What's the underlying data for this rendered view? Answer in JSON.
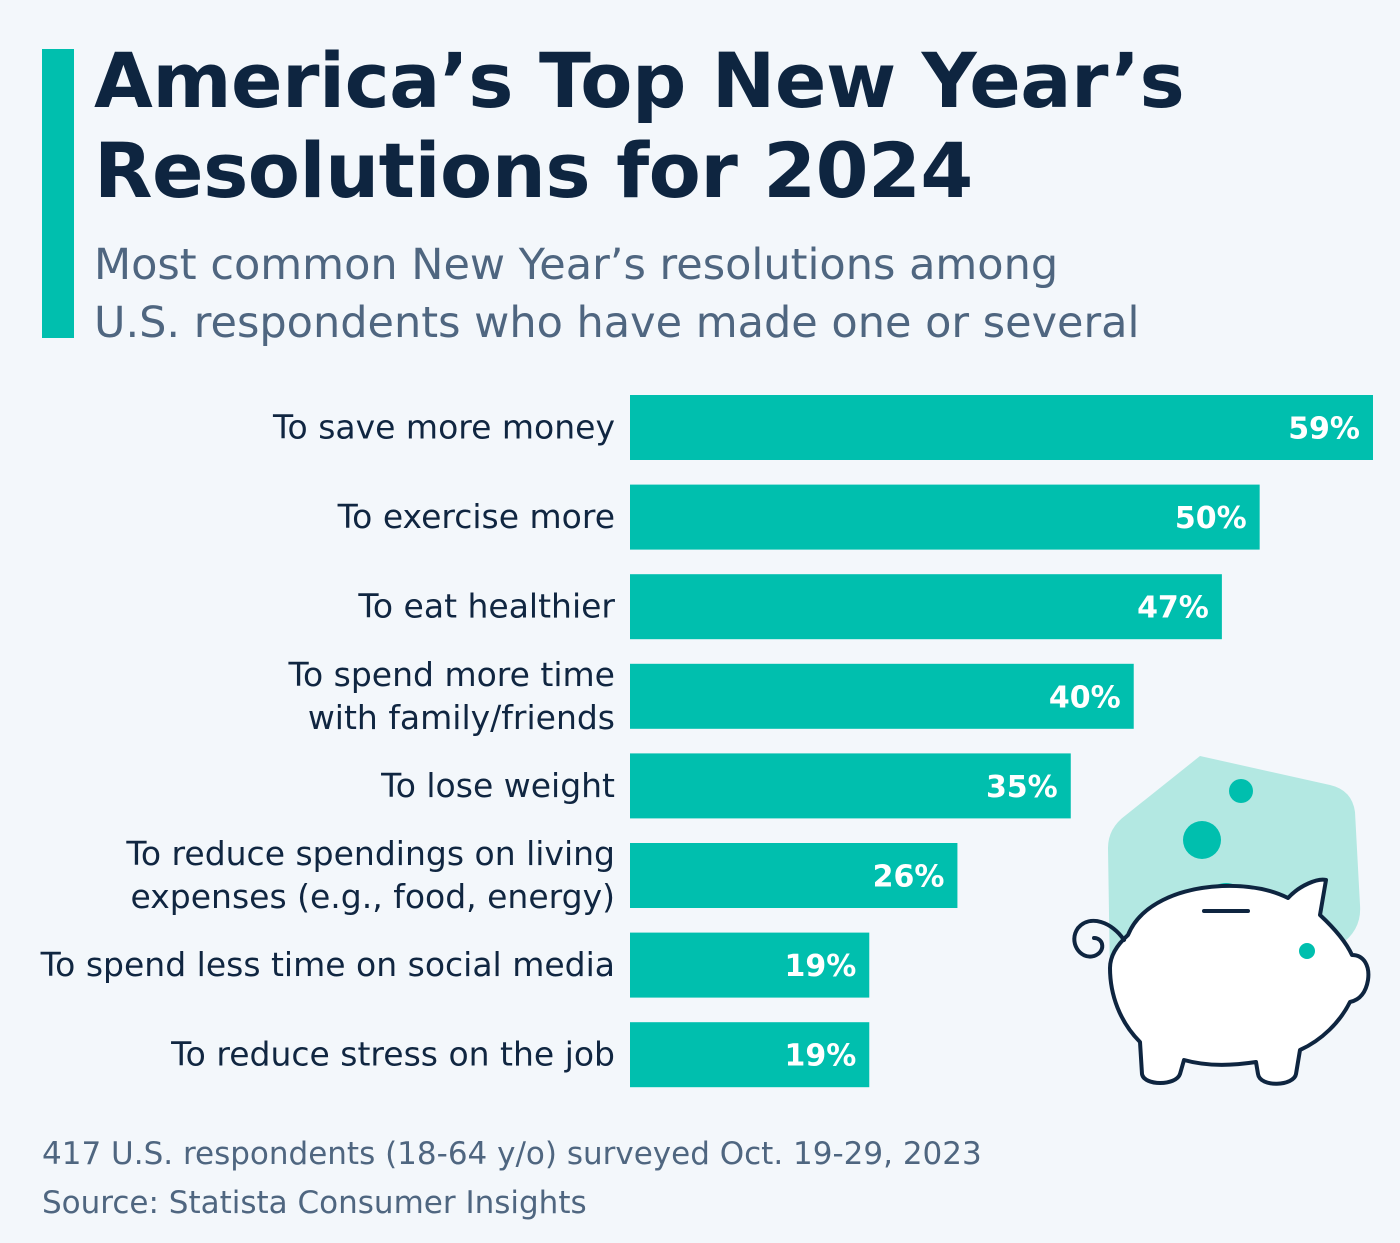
{
  "colors": {
    "accent": "#00bfae",
    "title": "#0e2540",
    "subtitle": "#4f6680",
    "background": "#f3f7fb",
    "icon_bg": "#b3e8e2",
    "icon_stroke": "#0e2540"
  },
  "header": {
    "title_line1": "America’s Top New Year’s",
    "title_line2": "Resolutions for 2024",
    "subtitle_line1": "Most common New Year’s resolutions among",
    "subtitle_line2": "U.S. respondents who have made one or several"
  },
  "chart_data": {
    "type": "bar",
    "orientation": "horizontal",
    "title": "America’s Top New Year’s Resolutions for 2024",
    "subtitle": "Most common New Year’s resolutions among U.S. respondents who have made one or several",
    "categories": [
      [
        "To save more money"
      ],
      [
        "To exercise more"
      ],
      [
        "To eat healthier"
      ],
      [
        "To spend more time",
        "with family/friends"
      ],
      [
        "To lose weight"
      ],
      [
        "To reduce spendings on living",
        "expenses (e.g., food, energy)"
      ],
      [
        "To spend less time on social media"
      ],
      [
        "To reduce stress on the job"
      ]
    ],
    "values": [
      59,
      50,
      47,
      40,
      35,
      26,
      19,
      19
    ],
    "value_labels": [
      "59%",
      "50%",
      "47%",
      "40%",
      "35%",
      "26%",
      "19%",
      "19%"
    ],
    "unit": "%",
    "xlim": [
      0,
      59
    ],
    "grid": false,
    "legend": "none",
    "bar_color": "#00bfae"
  },
  "illustration": {
    "icon": "piggy-bank-icon"
  },
  "footer": {
    "note": "417 U.S. respondents (18-64 y/o) surveyed Oct. 19-29, 2023",
    "source": "Source: Statista Consumer Insights"
  }
}
